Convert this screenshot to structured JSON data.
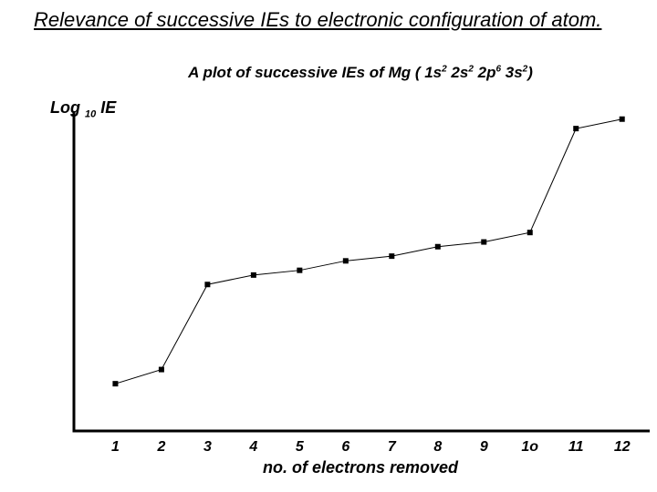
{
  "page": {
    "title": "Relevance of successive IEs to electronic configuration of atom."
  },
  "chart_data": {
    "type": "line",
    "title_parts": [
      {
        "text": "A plot of successive IEs of Mg ( 1s",
        "sup": false
      },
      {
        "text": "2",
        "sup": true
      },
      {
        "text": " 2s",
        "sup": false
      },
      {
        "text": "2",
        "sup": true
      },
      {
        "text": " 2p",
        "sup": false
      },
      {
        "text": "6",
        "sup": true
      },
      {
        "text": " 3s",
        "sup": false
      },
      {
        "text": "2",
        "sup": true
      },
      {
        "text": ")",
        "sup": false
      }
    ],
    "ylabel_main": "Log ",
    "ylabel_sub": "10",
    "ylabel_tail": " IE",
    "xlabel": "no. of electrons removed",
    "x": [
      1,
      2,
      3,
      4,
      5,
      6,
      7,
      8,
      9,
      10,
      11,
      12
    ],
    "tick_labels": [
      "1",
      "2",
      "3",
      "4",
      "5",
      "6",
      "7",
      "8",
      "9",
      "1o",
      "11",
      "12"
    ],
    "y": [
      0.6,
      0.9,
      2.7,
      2.9,
      3.0,
      3.2,
      3.3,
      3.5,
      3.6,
      3.8,
      6.0,
      6.2
    ],
    "ylim": [
      -0.4,
      6.6
    ],
    "xlim": [
      0.1,
      12.6
    ],
    "grid": false,
    "line_color": "#000000",
    "marker_color": "#000000",
    "axis_color": "#000000"
  }
}
